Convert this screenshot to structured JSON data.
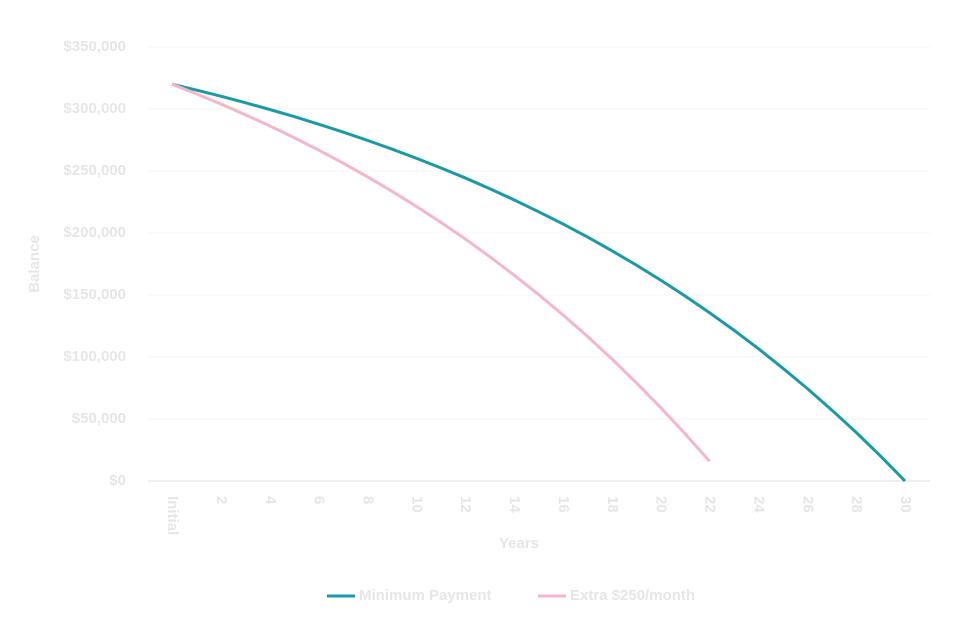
{
  "chart_data": {
    "type": "line",
    "x_label": "Years",
    "y_label": "Balance",
    "categories": [
      "Initial",
      null,
      "2",
      null,
      "4",
      null,
      "6",
      null,
      "8",
      null,
      "10",
      null,
      "12",
      null,
      "14",
      null,
      "16",
      null,
      "18",
      null,
      "20",
      null,
      "22",
      null,
      "24",
      null,
      "26",
      null,
      "28",
      null,
      "30"
    ],
    "series": [
      {
        "name": "Minimum Payment",
        "color": "#1a9aa8",
        "values": [
          320000,
          315300,
          310300,
          305100,
          299600,
          293900,
          287800,
          281400,
          274700,
          267700,
          260300,
          252500,
          244400,
          235800,
          226700,
          217200,
          207300,
          196800,
          185700,
          174200,
          162000,
          149200,
          135700,
          121600,
          106700,
          91000,
          74600,
          57300,
          39200,
          20100,
          0
        ]
      },
      {
        "name": "Extra $250/month",
        "color": "#f4b6c8",
        "values": [
          320000,
          312200,
          304000,
          295400,
          286400,
          276900,
          266900,
          256400,
          245300,
          233700,
          221500,
          208700,
          195200,
          181000,
          166100,
          150400,
          134000,
          116700,
          98500,
          79300,
          59200,
          38100,
          15900,
          null,
          null,
          null,
          null,
          null,
          null,
          null,
          null
        ]
      }
    ],
    "ylim": [
      0,
      350000
    ],
    "yticks": [
      {
        "value": 0,
        "label": "$0"
      },
      {
        "value": 50000,
        "label": "$50,000"
      },
      {
        "value": 100000,
        "label": "$100,000"
      },
      {
        "value": 150000,
        "label": "$150,000"
      },
      {
        "value": 200000,
        "label": "$200,000"
      },
      {
        "value": 250000,
        "label": "$250,000"
      },
      {
        "value": 300000,
        "label": "$300,000"
      },
      {
        "value": 350000,
        "label": "$350,000"
      }
    ],
    "grid": true,
    "legend": "bottom"
  }
}
